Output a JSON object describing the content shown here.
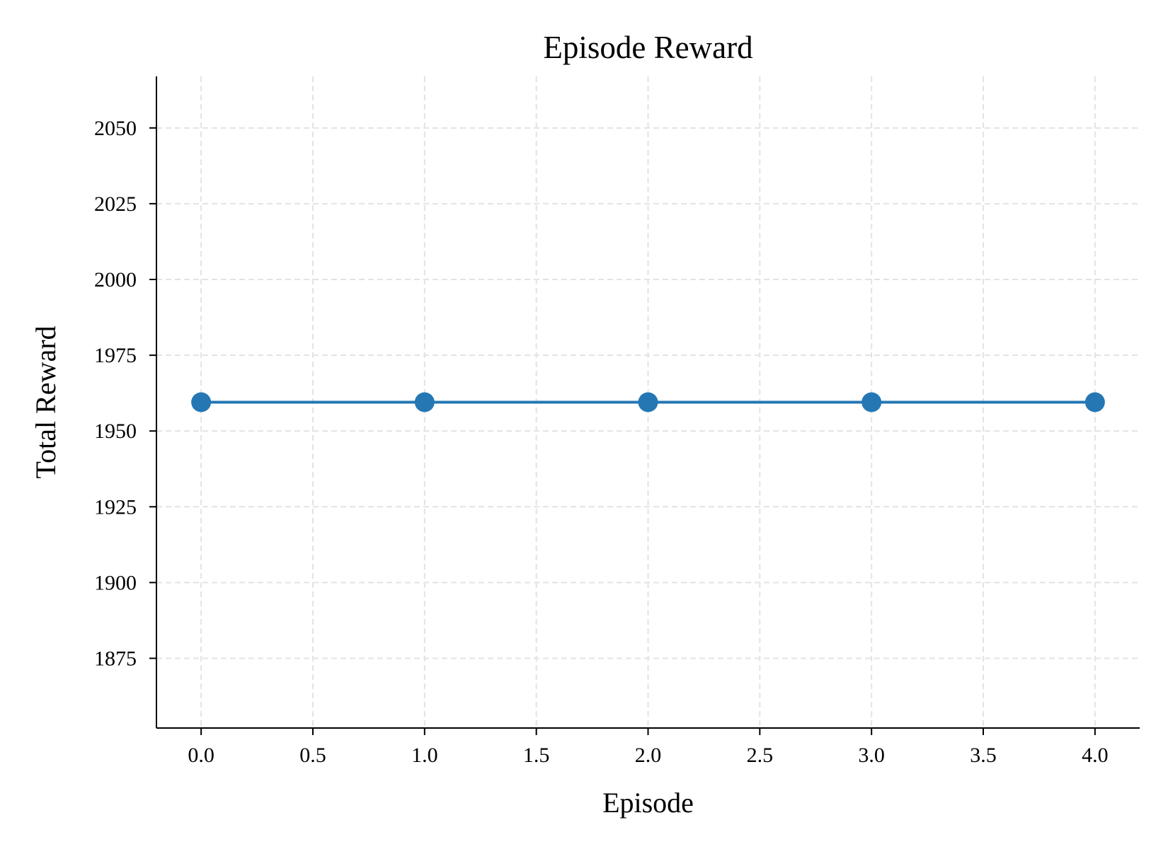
{
  "chart_data": {
    "type": "line",
    "title": "Episode Reward",
    "xlabel": "Episode",
    "ylabel": "Total Reward",
    "x": [
      0,
      1,
      2,
      3,
      4
    ],
    "series": [
      {
        "values": [
          1959.5,
          1959.5,
          1959.5,
          1959.5,
          1959.5
        ],
        "color": "#2577b4",
        "marker": "circle"
      }
    ],
    "xlim": [
      -0.2,
      4.2
    ],
    "ylim": [
      1852,
      2067
    ],
    "xticks": [
      0.0,
      0.5,
      1.0,
      1.5,
      2.0,
      2.5,
      3.0,
      3.5,
      4.0
    ],
    "xtick_labels": [
      "0.0",
      "0.5",
      "1.0",
      "1.5",
      "2.0",
      "2.5",
      "3.0",
      "3.5",
      "4.0"
    ],
    "yticks": [
      1875,
      1900,
      1925,
      1950,
      1975,
      2000,
      2025,
      2050
    ],
    "ytick_labels": [
      "1875",
      "1900",
      "1925",
      "1950",
      "1975",
      "2000",
      "2025",
      "2050"
    ],
    "grid": true,
    "grid_style": "dashed",
    "grid_color": "#e3e3e3",
    "spines": [
      "left",
      "bottom"
    ]
  }
}
